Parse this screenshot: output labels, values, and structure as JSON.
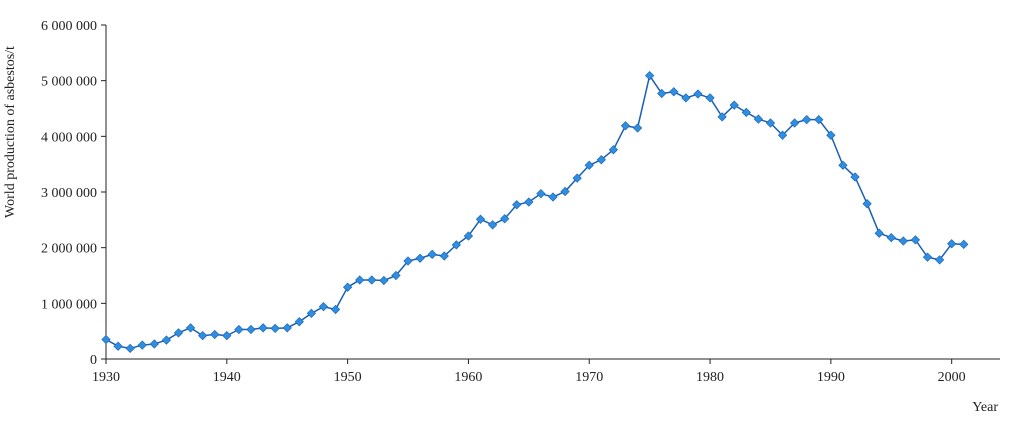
{
  "chart_data": {
    "type": "line",
    "title": "",
    "xlabel": "Year",
    "ylabel": "World production of asbestos/t",
    "xlim": [
      1930,
      2004
    ],
    "ylim": [
      0,
      6000000
    ],
    "x_ticks": [
      1930,
      1940,
      1950,
      1960,
      1970,
      1980,
      1990,
      2000
    ],
    "y_ticks": [
      0,
      1000000,
      2000000,
      3000000,
      4000000,
      5000000,
      6000000
    ],
    "y_tick_labels": [
      "0",
      "1 000 000",
      "2 000 000",
      "3 000 000",
      "4 000 000",
      "5 000 000",
      "6 000 000"
    ],
    "grid": false,
    "legend": "none",
    "colors": {
      "line": "#1a5fb4",
      "marker": "#2e8fe0",
      "axis": "#222222"
    },
    "series": [
      {
        "x": [
          1930,
          1931,
          1932,
          1933,
          1934,
          1935,
          1936,
          1937,
          1938,
          1939,
          1940,
          1941,
          1942,
          1943,
          1944,
          1945,
          1946,
          1947,
          1948,
          1949,
          1950,
          1951,
          1952,
          1953,
          1954,
          1955,
          1956,
          1957,
          1958,
          1959,
          1960,
          1961,
          1962,
          1963,
          1964,
          1965,
          1966,
          1967,
          1968,
          1969,
          1970,
          1971,
          1972,
          1973,
          1974,
          1975,
          1976,
          1977,
          1978,
          1979,
          1980,
          1981,
          1982,
          1983,
          1984,
          1985,
          1986,
          1987,
          1988,
          1989,
          1990,
          1991,
          1992,
          1993,
          1994,
          1995,
          1996,
          1997,
          1998,
          1999,
          2000,
          2001
        ],
        "values": [
          350000,
          230000,
          190000,
          250000,
          270000,
          340000,
          470000,
          560000,
          420000,
          440000,
          420000,
          530000,
          530000,
          560000,
          550000,
          560000,
          670000,
          820000,
          940000,
          890000,
          1290000,
          1420000,
          1420000,
          1410000,
          1500000,
          1760000,
          1810000,
          1880000,
          1850000,
          2050000,
          2210000,
          2510000,
          2410000,
          2520000,
          2770000,
          2820000,
          2970000,
          2910000,
          3010000,
          3250000,
          3480000,
          3580000,
          3760000,
          4190000,
          4150000,
          5090000,
          4770000,
          4800000,
          4690000,
          4760000,
          4690000,
          4350000,
          4560000,
          4430000,
          4310000,
          4240000,
          4020000,
          4240000,
          4300000,
          4300000,
          4020000,
          3480000,
          3270000,
          2790000,
          2260000,
          2180000,
          2120000,
          2140000,
          1830000,
          1780000,
          2070000,
          2060000
        ]
      }
    ]
  }
}
